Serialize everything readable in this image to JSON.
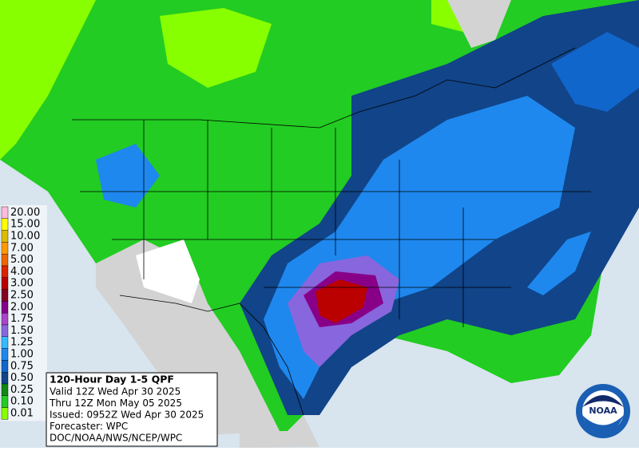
{
  "legend": {
    "items": [
      {
        "label": "20.00",
        "color": "#ffbbdd"
      },
      {
        "label": "15.00",
        "color": "#ffff00"
      },
      {
        "label": "10.00",
        "color": "#ddbb00"
      },
      {
        "label": "7.00",
        "color": "#ff9900"
      },
      {
        "label": "5.00",
        "color": "#ee6600"
      },
      {
        "label": "4.00",
        "color": "#dd2200"
      },
      {
        "label": "3.00",
        "color": "#bb0000"
      },
      {
        "label": "2.50",
        "color": "#880022"
      },
      {
        "label": "2.00",
        "color": "#880088"
      },
      {
        "label": "1.75",
        "color": "#aa44cc"
      },
      {
        "label": "1.50",
        "color": "#8866dd"
      },
      {
        "label": "1.25",
        "color": "#33bbff"
      },
      {
        "label": "1.00",
        "color": "#1e88ee"
      },
      {
        "label": "0.75",
        "color": "#1166cc"
      },
      {
        "label": "0.50",
        "color": "#114488"
      },
      {
        "label": "0.25",
        "color": "#118811"
      },
      {
        "label": "0.10",
        "color": "#22cc22"
      },
      {
        "label": "0.01",
        "color": "#88ff00"
      }
    ]
  },
  "info": {
    "title": "120-Hour Day 1-5 QPF",
    "lines": [
      "Valid 12Z Wed Apr 30 2025",
      "Thru 12Z Mon May 05 2025",
      "Issued: 0952Z Wed Apr 30 2025",
      "Forecaster: WPC",
      "DOC/NOAA/NWS/NCEP/WPC"
    ]
  },
  "logo": {
    "text": "NOAA"
  }
}
